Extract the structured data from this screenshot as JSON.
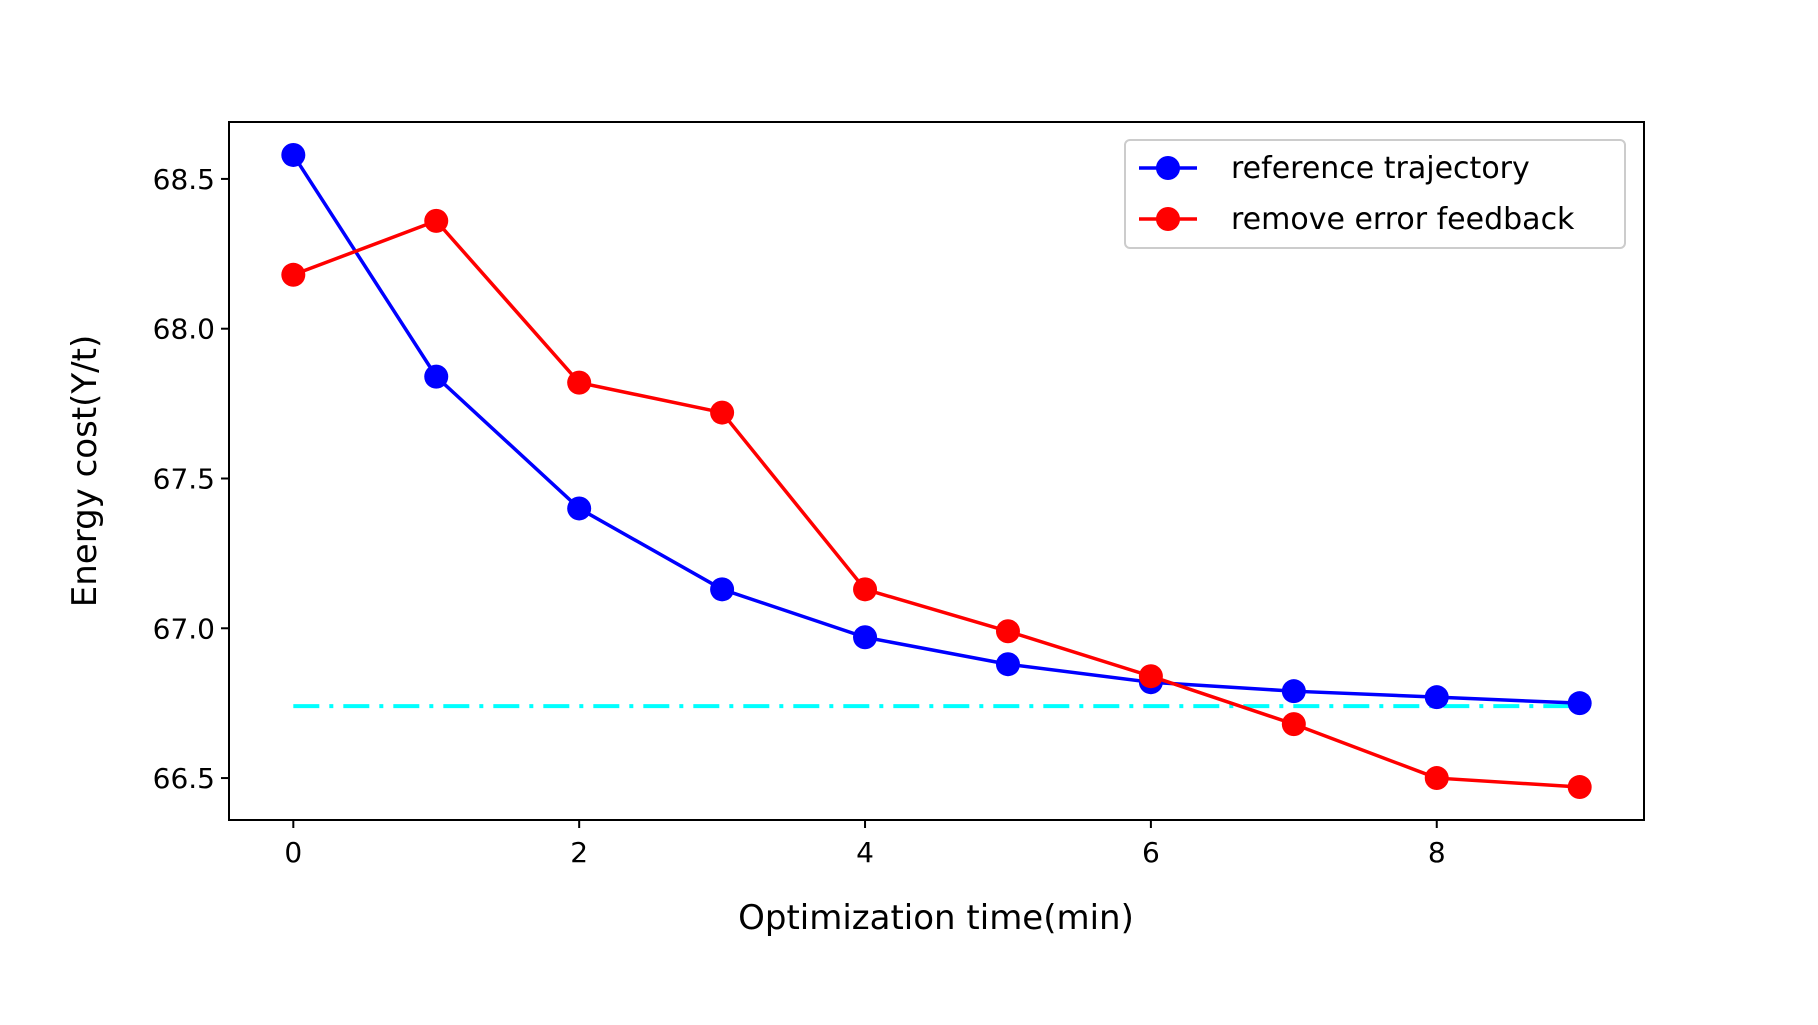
{
  "chart_data": {
    "type": "line",
    "title": "",
    "xlabel": "Optimization time(min)",
    "ylabel": "Energy cost(Y/t)",
    "xlim": [
      -0.45,
      9.45
    ],
    "ylim": [
      66.36,
      68.69
    ],
    "xticks": [
      0,
      2,
      4,
      6,
      8
    ],
    "xtick_labels": [
      "0",
      "2",
      "4",
      "6",
      "8"
    ],
    "yticks": [
      66.5,
      67.0,
      67.5,
      68.0,
      68.5
    ],
    "ytick_labels": [
      "66.5",
      "67.0",
      "67.5",
      "68.0",
      "68.5"
    ],
    "grid": false,
    "legend_position": "top-right",
    "x": [
      0,
      1,
      2,
      3,
      4,
      5,
      6,
      7,
      8,
      9
    ],
    "series": [
      {
        "name": "reference trajectory",
        "color": "#0000ff",
        "marker": "circle",
        "values": [
          68.58,
          67.84,
          67.4,
          67.13,
          66.97,
          66.88,
          66.82,
          66.79,
          66.77,
          66.75
        ]
      },
      {
        "name": "remove error feedback",
        "color": "#ff0000",
        "marker": "circle",
        "values": [
          68.18,
          68.36,
          67.82,
          67.72,
          67.13,
          66.99,
          66.84,
          66.68,
          66.5,
          66.47
        ]
      }
    ],
    "reference_line": {
      "y": 66.74,
      "x_range": [
        0,
        9
      ],
      "color": "#00ffff",
      "style": "dashdot"
    }
  }
}
